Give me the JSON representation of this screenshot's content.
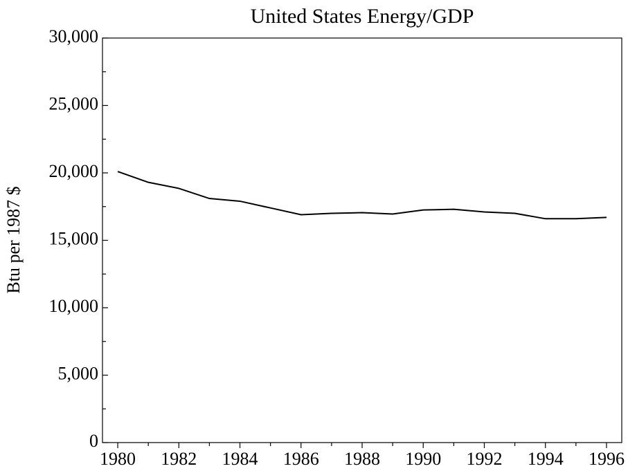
{
  "chart_data": {
    "type": "line",
    "title": "United States Energy/GDP",
    "ylabel": "Btu per 1987 $",
    "x": [
      1980,
      1981,
      1982,
      1983,
      1984,
      1985,
      1986,
      1987,
      1988,
      1989,
      1990,
      1991,
      1992,
      1993,
      1994,
      1995,
      1996
    ],
    "series": [
      {
        "color": "#000000",
        "values": [
          20100,
          19300,
          18850,
          18100,
          17900,
          17400,
          16900,
          17000,
          17050,
          16950,
          17250,
          17300,
          17100,
          17000,
          16600,
          16600,
          16700
        ]
      }
    ],
    "xlim": [
      1979.5,
      1996.5
    ],
    "xticks": [
      1980,
      1982,
      1984,
      1986,
      1988,
      1990,
      1992,
      1994,
      1996
    ],
    "xminorticks": [
      1981,
      1983,
      1985,
      1987,
      1989,
      1991,
      1993,
      1995
    ],
    "ylim": [
      0,
      30000
    ],
    "yticks": [
      0,
      {
        "value": 5000,
        "label": "5,000"
      },
      {
        "value": 10000,
        "label": "10,000"
      },
      {
        "value": 15000,
        "label": "15,000"
      },
      {
        "value": 20000,
        "label": "20,000"
      },
      {
        "value": 25000,
        "label": "25,000"
      },
      {
        "value": 30000,
        "label": "30,000"
      }
    ],
    "yminorticks": [
      2500,
      7500,
      12500,
      17500,
      22500,
      27500
    ],
    "grid": false
  }
}
